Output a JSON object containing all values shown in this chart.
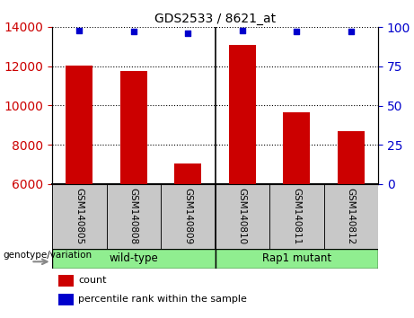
{
  "title": "GDS2533 / 8621_at",
  "samples": [
    "GSM140805",
    "GSM140808",
    "GSM140809",
    "GSM140810",
    "GSM140811",
    "GSM140812"
  ],
  "counts": [
    12050,
    11750,
    7050,
    13100,
    9650,
    8700
  ],
  "percentiles": [
    98,
    97,
    96,
    98,
    97,
    97
  ],
  "ylim_left": [
    6000,
    14000
  ],
  "ylim_right": [
    0,
    100
  ],
  "yticks_left": [
    6000,
    8000,
    10000,
    12000,
    14000
  ],
  "yticks_right": [
    0,
    25,
    50,
    75,
    100
  ],
  "bar_color": "#CC0000",
  "dot_color": "#0000CC",
  "bar_width": 0.5,
  "groups": [
    {
      "label": "wild-type",
      "color": "#90EE90"
    },
    {
      "label": "Rap1 mutant",
      "color": "#90EE90"
    }
  ],
  "group_label": "genotype/variation",
  "tick_color_left": "#CC0000",
  "tick_color_right": "#0000CC",
  "legend_count_color": "#CC0000",
  "legend_pct_color": "#0000CC",
  "bg_xtick": "#C8C8C8",
  "separator_x": 2.5,
  "xlim": [
    -0.5,
    5.5
  ]
}
